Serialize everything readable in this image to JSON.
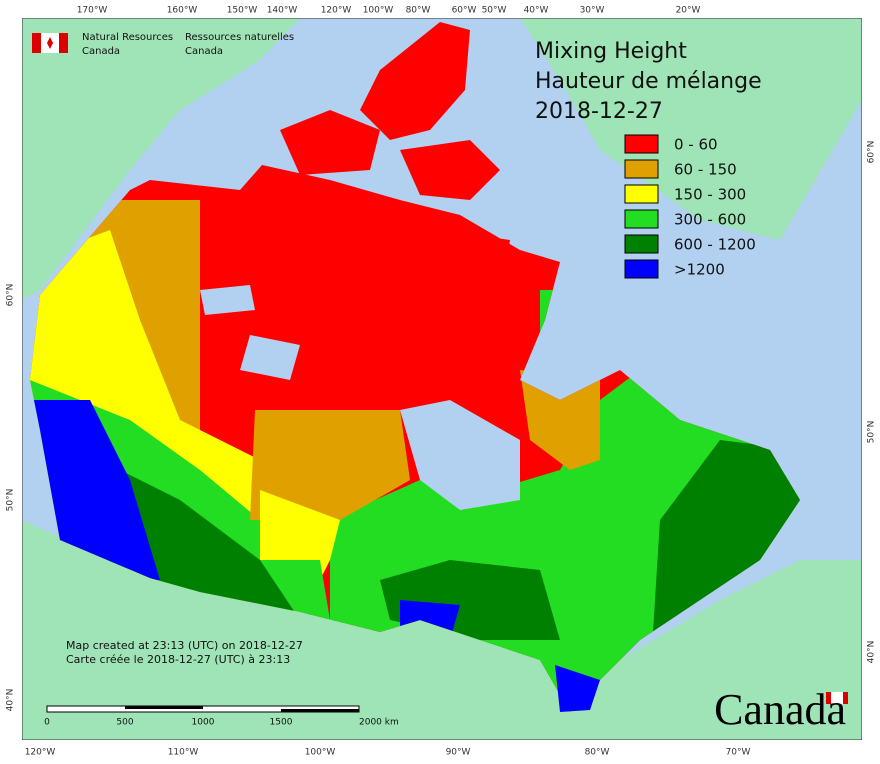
{
  "header": {
    "english": [
      "Natural Resources",
      "Canada"
    ],
    "french": [
      "Ressources naturelles",
      "Canada"
    ]
  },
  "title": [
    "Mixing Height",
    "Hauteur de mélange",
    "2018-12-27"
  ],
  "legend": [
    {
      "label": "0 - 60",
      "color": "#ff0000"
    },
    {
      "label": "60 - 150",
      "color": "#e0a000"
    },
    {
      "label": "150 - 300",
      "color": "#ffff00"
    },
    {
      "label": "300 - 600",
      "color": "#22dd22"
    },
    {
      "label": "600 - 1200",
      "color": "#008000"
    },
    {
      "label": ">1200",
      "color": "#0000ff"
    }
  ],
  "graticule": {
    "top": [
      "170°W",
      "160°W",
      "150°W",
      "140°W",
      "120°W",
      "100°W",
      "80°W",
      "60°W",
      "50°W",
      "40°W",
      "30°W",
      "20°W"
    ],
    "bottom": [
      "120°W",
      "110°W",
      "100°W",
      "90°W",
      "80°W",
      "70°W"
    ],
    "left": [
      "60°N",
      "50°N",
      "40°N"
    ],
    "right": [
      "60°N",
      "50°N",
      "40°N"
    ]
  },
  "notes": [
    "Map created at 23:13 (UTC) on 2018-12-27",
    "Carte créée le 2018-12-27 (UTC) à 23:13"
  ],
  "scale_bar": [
    "0",
    "500",
    "1000",
    "1500",
    "2000 km"
  ],
  "wordmark": "Canada"
}
